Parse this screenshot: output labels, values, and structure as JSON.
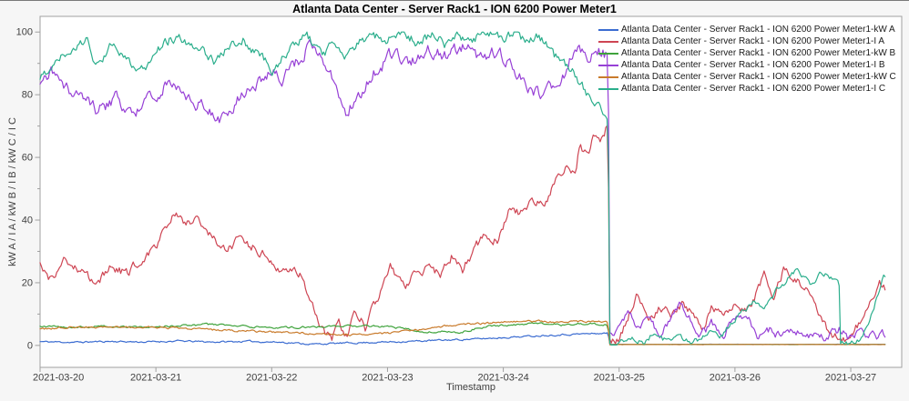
{
  "chart_data": {
    "type": "line",
    "title": "Atlanta Data Center - Server Rack1 - ION 6200 Power Meter1",
    "xlabel": "Timestamp",
    "ylabel": "kW A / I A / kW B / I B / kW C / I C",
    "x_tick_labels": [
      "2021-03-20",
      "2021-03-21",
      "2021-03-22",
      "2021-03-23",
      "2021-03-24",
      "2021-03-25",
      "2021-03-26",
      "2021-03-27"
    ],
    "x_tick_days": [
      0,
      1,
      2,
      3,
      4,
      5,
      6,
      7
    ],
    "y_ticks": [
      0,
      20,
      40,
      60,
      80,
      100
    ],
    "y_minor_ticks": [
      10,
      30,
      50,
      70,
      90
    ],
    "xlim_days": [
      0,
      7.44
    ],
    "ylim": [
      -7,
      105
    ],
    "grid": false,
    "legend_position": "top-right-inside",
    "event_note": "All six channels collapse to ~0 in a vertical step at day 4.91 (late 2021-03-24); I A, I B and I C then oscillate between 0 and ~25 while kW A, kW B and kW C stay flat near 0.",
    "series": [
      {
        "name": "Atlanta Data Center - Server Rack1 - ION 6200 Power Meter1-kW A",
        "channel": "kW A",
        "color": "#3b6cd1",
        "noise": 0.25,
        "noise_after": 0.04,
        "drop_t": 4.91,
        "points": [
          [
            0,
            1.2
          ],
          [
            0.3,
            1.0
          ],
          [
            0.6,
            1.3
          ],
          [
            0.9,
            1.1
          ],
          [
            1.2,
            1.4
          ],
          [
            1.5,
            1.1
          ],
          [
            1.8,
            1.3
          ],
          [
            2.1,
            1.0
          ],
          [
            2.35,
            0.4
          ],
          [
            2.6,
            0.7
          ],
          [
            2.9,
            1.0
          ],
          [
            3.2,
            1.3
          ],
          [
            3.5,
            1.7
          ],
          [
            3.8,
            2.1
          ],
          [
            4.1,
            2.7
          ],
          [
            4.4,
            3.3
          ],
          [
            4.7,
            3.7
          ],
          [
            4.905,
            3.9
          ],
          [
            4.915,
            0.35
          ],
          [
            7.3,
            0.35
          ]
        ]
      },
      {
        "name": "Atlanta Data Center - Server Rack1 - ION 6200 Power Meter1-I A",
        "channel": "I A",
        "color": "#ce4553",
        "noise": 1.4,
        "noise_after": 1.3,
        "drop_t": 4.91,
        "points": [
          [
            0,
            26
          ],
          [
            0.08,
            21
          ],
          [
            0.2,
            27
          ],
          [
            0.35,
            23
          ],
          [
            0.5,
            20
          ],
          [
            0.62,
            25
          ],
          [
            0.75,
            23
          ],
          [
            0.9,
            28
          ],
          [
            1.0,
            32
          ],
          [
            1.15,
            43
          ],
          [
            1.25,
            38
          ],
          [
            1.35,
            41
          ],
          [
            1.5,
            34
          ],
          [
            1.6,
            30
          ],
          [
            1.7,
            33
          ],
          [
            1.86,
            31
          ],
          [
            2.0,
            27
          ],
          [
            2.1,
            24
          ],
          [
            2.25,
            23
          ],
          [
            2.35,
            14
          ],
          [
            2.45,
            4
          ],
          [
            2.52,
            1.5
          ],
          [
            2.58,
            7
          ],
          [
            2.65,
            2
          ],
          [
            2.72,
            12
          ],
          [
            2.81,
            5.5
          ],
          [
            2.9,
            14
          ],
          [
            3.03,
            25
          ],
          [
            3.15,
            19
          ],
          [
            3.25,
            23
          ],
          [
            3.37,
            26
          ],
          [
            3.45,
            22
          ],
          [
            3.56,
            29
          ],
          [
            3.65,
            24
          ],
          [
            3.75,
            31
          ],
          [
            3.85,
            36
          ],
          [
            3.95,
            33
          ],
          [
            4.06,
            44
          ],
          [
            4.15,
            42
          ],
          [
            4.25,
            47
          ],
          [
            4.35,
            45
          ],
          [
            4.45,
            52
          ],
          [
            4.55,
            57
          ],
          [
            4.62,
            55
          ],
          [
            4.66,
            64
          ],
          [
            4.72,
            61
          ],
          [
            4.78,
            66
          ],
          [
            4.84,
            64
          ],
          [
            4.88,
            68
          ],
          [
            4.905,
            71
          ],
          [
            4.915,
            1
          ],
          [
            5.0,
            2
          ],
          [
            5.16,
            17
          ],
          [
            5.25,
            7
          ],
          [
            5.35,
            12
          ],
          [
            5.45,
            10
          ],
          [
            5.55,
            13
          ],
          [
            5.65,
            9
          ],
          [
            5.71,
            4
          ],
          [
            5.8,
            12
          ],
          [
            5.9,
            10
          ],
          [
            6.0,
            13
          ],
          [
            6.1,
            11
          ],
          [
            6.17,
            15
          ],
          [
            6.25,
            23
          ],
          [
            6.33,
            16
          ],
          [
            6.42,
            24
          ],
          [
            6.5,
            21
          ],
          [
            6.6,
            19
          ],
          [
            6.68,
            14
          ],
          [
            6.75,
            7
          ],
          [
            6.85,
            3
          ],
          [
            6.95,
            2
          ],
          [
            7.05,
            6
          ],
          [
            7.15,
            11
          ],
          [
            7.25,
            20
          ],
          [
            7.3,
            18
          ]
        ]
      },
      {
        "name": "Atlanta Data Center - Server Rack1 - ION 6200 Power Meter1-kW B",
        "channel": "kW B",
        "color": "#3fa33c",
        "noise": 0.3,
        "noise_after": 0.04,
        "drop_t": 4.91,
        "points": [
          [
            0,
            6.3
          ],
          [
            0.3,
            5.8
          ],
          [
            0.6,
            6.1
          ],
          [
            0.9,
            5.9
          ],
          [
            1.2,
            6.4
          ],
          [
            1.5,
            6.7
          ],
          [
            1.8,
            6.0
          ],
          [
            2.1,
            5.7
          ],
          [
            2.4,
            5.9
          ],
          [
            2.7,
            6.2
          ],
          [
            3.0,
            6.0
          ],
          [
            3.2,
            5.0
          ],
          [
            3.35,
            4.2
          ],
          [
            3.5,
            4.6
          ],
          [
            3.6,
            3.9
          ],
          [
            3.75,
            5.3
          ],
          [
            3.9,
            6.2
          ],
          [
            4.1,
            6.6
          ],
          [
            4.3,
            6.9
          ],
          [
            4.5,
            6.5
          ],
          [
            4.7,
            7.0
          ],
          [
            4.905,
            6.4
          ],
          [
            4.915,
            0.3
          ],
          [
            7.3,
            0.3
          ]
        ]
      },
      {
        "name": "Atlanta Data Center - Server Rack1 - ION 6200 Power Meter1-I B",
        "channel": "I B",
        "color": "#9740d6",
        "noise": 2.0,
        "noise_after": 1.3,
        "drop_t": 4.91,
        "points": [
          [
            0,
            82
          ],
          [
            0.1,
            88
          ],
          [
            0.3,
            80
          ],
          [
            0.5,
            75
          ],
          [
            0.65,
            79
          ],
          [
            0.8,
            74
          ],
          [
            0.95,
            78
          ],
          [
            1.1,
            84
          ],
          [
            1.25,
            80
          ],
          [
            1.4,
            76
          ],
          [
            1.55,
            73
          ],
          [
            1.7,
            78
          ],
          [
            1.85,
            83
          ],
          [
            2.0,
            88
          ],
          [
            2.1,
            84
          ],
          [
            2.2,
            90
          ],
          [
            2.35,
            96
          ],
          [
            2.5,
            88
          ],
          [
            2.63,
            73
          ],
          [
            2.75,
            80
          ],
          [
            2.9,
            88
          ],
          [
            3.05,
            93
          ],
          [
            3.2,
            90
          ],
          [
            3.35,
            95
          ],
          [
            3.5,
            92
          ],
          [
            3.65,
            96
          ],
          [
            3.8,
            91
          ],
          [
            3.95,
            94
          ],
          [
            4.1,
            88
          ],
          [
            4.2,
            82
          ],
          [
            4.35,
            80
          ],
          [
            4.5,
            84
          ],
          [
            4.6,
            94
          ],
          [
            4.75,
            92
          ],
          [
            4.85,
            94
          ],
          [
            4.905,
            92
          ],
          [
            4.92,
            3
          ],
          [
            5.0,
            6
          ],
          [
            5.08,
            11
          ],
          [
            5.15,
            5
          ],
          [
            5.25,
            8
          ],
          [
            5.35,
            4
          ],
          [
            5.45,
            9
          ],
          [
            5.54,
            13
          ],
          [
            5.62,
            8
          ],
          [
            5.7,
            3
          ],
          [
            5.8,
            7
          ],
          [
            5.9,
            4
          ],
          [
            6.0,
            8
          ],
          [
            6.1,
            9
          ],
          [
            6.2,
            3
          ],
          [
            6.3,
            5
          ],
          [
            6.4,
            2.5
          ],
          [
            6.5,
            5
          ],
          [
            6.6,
            2.5
          ],
          [
            6.7,
            3.5
          ],
          [
            6.8,
            2.5
          ],
          [
            6.9,
            5
          ],
          [
            7.0,
            2
          ],
          [
            7.1,
            4.5
          ],
          [
            7.2,
            3
          ],
          [
            7.3,
            3.5
          ]
        ]
      },
      {
        "name": "Atlanta Data Center - Server Rack1 - ION 6200 Power Meter1-kW C",
        "channel": "kW C",
        "color": "#c97b2c",
        "noise": 0.3,
        "noise_after": 0.04,
        "drop_t": 4.91,
        "points": [
          [
            0,
            5.2
          ],
          [
            0.3,
            6.0
          ],
          [
            0.6,
            5.6
          ],
          [
            0.9,
            6.0
          ],
          [
            1.2,
            5.4
          ],
          [
            1.5,
            5.0
          ],
          [
            1.8,
            4.6
          ],
          [
            2.1,
            4.2
          ],
          [
            2.4,
            3.8
          ],
          [
            2.7,
            3.4
          ],
          [
            2.9,
            3.6
          ],
          [
            3.1,
            4.2
          ],
          [
            3.3,
            5.2
          ],
          [
            3.5,
            6.2
          ],
          [
            3.7,
            6.8
          ],
          [
            3.9,
            7.2
          ],
          [
            4.1,
            7.6
          ],
          [
            4.3,
            7.7
          ],
          [
            4.5,
            7.4
          ],
          [
            4.7,
            7.7
          ],
          [
            4.905,
            7.4
          ],
          [
            4.915,
            0.3
          ],
          [
            7.3,
            0.3
          ]
        ]
      },
      {
        "name": "Atlanta Data Center - Server Rack1 - ION 6200 Power Meter1-I C",
        "channel": "I C",
        "color": "#2bae8c",
        "noise": 1.5,
        "noise_after": 0.9,
        "drop_t": 4.91,
        "points": [
          [
            0,
            85
          ],
          [
            0.1,
            90
          ],
          [
            0.25,
            94
          ],
          [
            0.4,
            97
          ],
          [
            0.5,
            89
          ],
          [
            0.6,
            96
          ],
          [
            0.75,
            91
          ],
          [
            0.9,
            87
          ],
          [
            1.0,
            93
          ],
          [
            1.1,
            97
          ],
          [
            1.2,
            99
          ],
          [
            1.35,
            95
          ],
          [
            1.5,
            91
          ],
          [
            1.6,
            94
          ],
          [
            1.75,
            98
          ],
          [
            1.9,
            92
          ],
          [
            2.0,
            88
          ],
          [
            2.1,
            92
          ],
          [
            2.2,
            96
          ],
          [
            2.3,
            99
          ],
          [
            2.45,
            93
          ],
          [
            2.55,
            97
          ],
          [
            2.65,
            92
          ],
          [
            2.75,
            96
          ],
          [
            2.85,
            99
          ],
          [
            3.0,
            97
          ],
          [
            3.1,
            100
          ],
          [
            3.25,
            97
          ],
          [
            3.4,
            99
          ],
          [
            3.5,
            96
          ],
          [
            3.6,
            99
          ],
          [
            3.7,
            97
          ],
          [
            3.85,
            100
          ],
          [
            4.0,
            98
          ],
          [
            4.1,
            100
          ],
          [
            4.2,
            97
          ],
          [
            4.3,
            99
          ],
          [
            4.4,
            94
          ],
          [
            4.5,
            90
          ],
          [
            4.6,
            87
          ],
          [
            4.7,
            82
          ],
          [
            4.8,
            77
          ],
          [
            4.88,
            74
          ],
          [
            4.905,
            74
          ],
          [
            4.92,
            1
          ],
          [
            5.0,
            0.5
          ],
          [
            5.1,
            3
          ],
          [
            5.2,
            1
          ],
          [
            5.3,
            4
          ],
          [
            5.4,
            1.5
          ],
          [
            5.5,
            3
          ],
          [
            5.6,
            1
          ],
          [
            5.7,
            2
          ],
          [
            5.8,
            4
          ],
          [
            5.87,
            2
          ],
          [
            5.95,
            6
          ],
          [
            6.05,
            10
          ],
          [
            6.15,
            14
          ],
          [
            6.25,
            12
          ],
          [
            6.35,
            17
          ],
          [
            6.45,
            21
          ],
          [
            6.55,
            24
          ],
          [
            6.65,
            20
          ],
          [
            6.75,
            23
          ],
          [
            6.85,
            21
          ],
          [
            6.9,
            19
          ],
          [
            6.91,
            0.5
          ],
          [
            7.0,
            0.5
          ],
          [
            7.1,
            2
          ],
          [
            7.2,
            12
          ],
          [
            7.28,
            22
          ],
          [
            7.3,
            21
          ]
        ]
      }
    ]
  }
}
